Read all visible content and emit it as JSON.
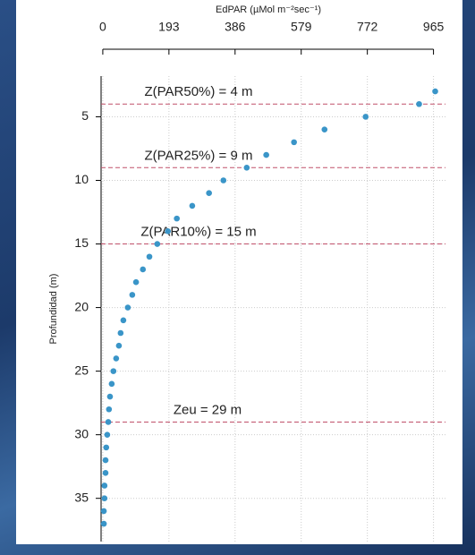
{
  "chart_data": {
    "type": "scatter",
    "x_label": "EdPAR  (µMol m⁻²sec⁻¹)",
    "y_label": "Profundidad (m)",
    "x": [
      970,
      923,
      767,
      647,
      558,
      477,
      420,
      352,
      310,
      261,
      216,
      190,
      159,
      136,
      117,
      97,
      86,
      73,
      60,
      52,
      47,
      39,
      31,
      26,
      21,
      18,
      16,
      13,
      10,
      8,
      8,
      5,
      5,
      3,
      3
    ],
    "values": [
      3,
      4,
      5,
      6,
      7,
      8,
      9,
      10,
      11,
      12,
      13,
      14,
      15,
      16,
      17,
      18,
      19,
      20,
      21,
      22,
      23,
      24,
      25,
      26,
      27,
      28,
      29,
      30,
      31,
      32,
      33,
      34,
      35,
      36,
      37
    ],
    "color": "#3a95c8",
    "xlim": [
      -5,
      1000
    ],
    "xticks": [
      0,
      193,
      386,
      579,
      772,
      965
    ],
    "ylim": [
      1.8,
      38.4
    ],
    "yticks": [
      5,
      10,
      15,
      20,
      25,
      30,
      35
    ],
    "y_inverted": true,
    "grid": true,
    "reference_lines": [
      {
        "value": 4,
        "label": "Z(PAR50%) = 4 m"
      },
      {
        "value": 9,
        "label": "Z(PAR25%) = 9 m"
      },
      {
        "value": 15,
        "label": "Z(PAR10%) = 15 m"
      },
      {
        "value": 29,
        "label": "Zeu = 29 m"
      }
    ],
    "reference_color": "#c0506a"
  }
}
